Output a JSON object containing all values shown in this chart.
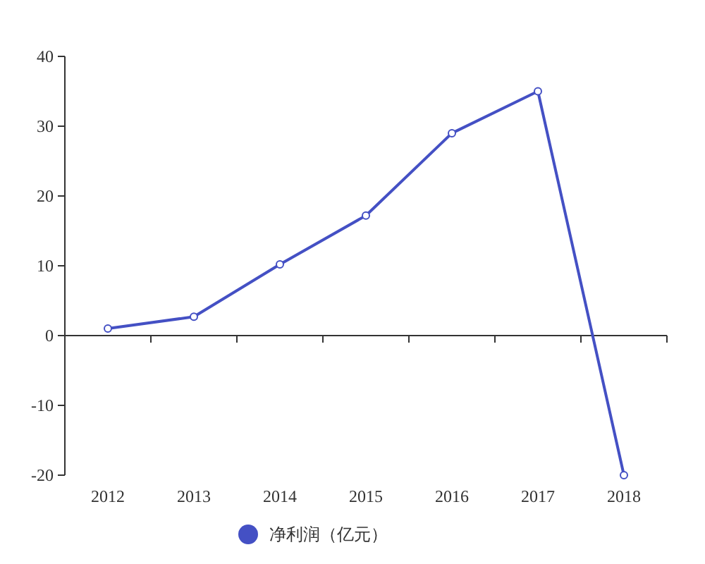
{
  "chart_data": {
    "type": "line",
    "categories": [
      "2012",
      "2013",
      "2014",
      "2015",
      "2016",
      "2017",
      "2018"
    ],
    "series": [
      {
        "name": "净利润（亿元）",
        "color": "#4450c4",
        "values": [
          1,
          2.7,
          10.2,
          17.2,
          29,
          35,
          -20
        ]
      }
    ],
    "ylim": [
      -20,
      40
    ],
    "yticks": [
      -20,
      -10,
      0,
      10,
      20,
      30,
      40
    ],
    "legend": "bottom",
    "marker": "circle"
  }
}
